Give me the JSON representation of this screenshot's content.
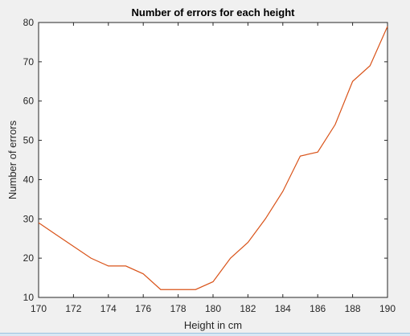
{
  "chart_data": {
    "type": "line",
    "title": "Number of errors for each height",
    "xlabel": "Height in cm",
    "ylabel": "Number of errors",
    "xlim": [
      170,
      190
    ],
    "ylim": [
      10,
      80
    ],
    "xticks": [
      170,
      172,
      174,
      176,
      178,
      180,
      182,
      184,
      186,
      188,
      190
    ],
    "yticks": [
      10,
      20,
      30,
      40,
      50,
      60,
      70,
      80
    ],
    "grid": false,
    "legend": "none",
    "series": [
      {
        "color": "#d95319",
        "x": [
          170,
          171,
          172,
          173,
          174,
          175,
          176,
          177,
          178,
          179,
          180,
          181,
          182,
          183,
          184,
          185,
          186,
          187,
          188,
          189,
          190
        ],
        "y": [
          29,
          26,
          23,
          20,
          18,
          18,
          16,
          12,
          12,
          12,
          14,
          20,
          24,
          30,
          37,
          46,
          47,
          54,
          65,
          69,
          79
        ]
      }
    ]
  },
  "colors": {
    "background": "#f0f0f0",
    "plot_background": "#ffffff",
    "axis": "#262626",
    "line": "#d95319"
  }
}
